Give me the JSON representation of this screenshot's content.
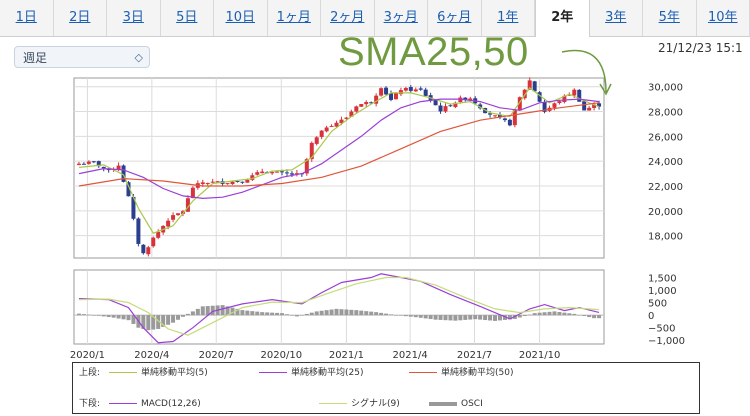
{
  "tabs": [
    "1日",
    "2日",
    "3日",
    "5日",
    "10日",
    "1ヶ月",
    "2ヶ月",
    "3ヶ月",
    "6ヶ月",
    "1年",
    "2年",
    "3年",
    "5年",
    "10年"
  ],
  "active_tab": "2年",
  "period_select": "週足",
  "timestamp": "21/12/23 15:1",
  "annotation": "SMA25,50",
  "legend": {
    "upper_label": "上段:",
    "lower_label": "下段:",
    "upper_items": [
      {
        "label": "単純移動平均(5)",
        "color": "#a9c94b"
      },
      {
        "label": "単純移動平均(25)",
        "color": "#9b3fd6"
      },
      {
        "label": "単純移動平均(50)",
        "color": "#e0563b"
      }
    ],
    "lower_items": [
      {
        "label": "MACD(12,26)",
        "color": "#9b3fd6"
      },
      {
        "label": "シグナル(9)",
        "color": "#c4dc7a"
      },
      {
        "label": "OSCI",
        "color": "#999999"
      }
    ]
  },
  "colors": {
    "up": "#d8333a",
    "down": "#2b3f8f",
    "annotation": "#6f9a3f"
  },
  "chart_data": [
    {
      "type": "candlestick",
      "x_tick_labels": [
        "2020/1",
        "2020/4",
        "2020/7",
        "2020/10",
        "2021/1",
        "2021/4",
        "2021/7",
        "2021/10"
      ],
      "y_tick_labels": [
        "30,000",
        "28,000",
        "26,000",
        "24,000",
        "22,000",
        "20,000",
        "18,000"
      ],
      "ylim": [
        16200,
        30700
      ],
      "close_points": [
        [
          "2019/12/20",
          23800
        ],
        [
          "2020/1/10",
          23900
        ],
        [
          "2020/1/31",
          23200
        ],
        [
          "2020/2/14",
          23700
        ],
        [
          "2020/2/28",
          21100
        ],
        [
          "2020/3/13",
          17400
        ],
        [
          "2020/3/20",
          16550
        ],
        [
          "2020/4/3",
          17800
        ],
        [
          "2020/4/24",
          19300
        ],
        [
          "2020/5/15",
          20000
        ],
        [
          "2020/5/29",
          21900
        ],
        [
          "2020/6/12",
          22300
        ],
        [
          "2020/7/10",
          22300
        ],
        [
          "2020/8/7",
          22400
        ],
        [
          "2020/9/4",
          23200
        ],
        [
          "2020/10/2",
          23000
        ],
        [
          "2020/10/30",
          22900
        ],
        [
          "2020/11/13",
          25400
        ],
        [
          "2020/12/4",
          26800
        ],
        [
          "2020/12/30",
          27400
        ],
        [
          "2021/1/15",
          28500
        ],
        [
          "2021/2/5",
          28800
        ],
        [
          "2021/2/19",
          30000
        ],
        [
          "2021/3/5",
          28900
        ],
        [
          "2021/3/19",
          29800
        ],
        [
          "2021/4/16",
          29700
        ],
        [
          "2021/5/14",
          28100
        ],
        [
          "2021/6/11",
          29000
        ],
        [
          "2021/6/25",
          29100
        ],
        [
          "2021/7/16",
          28000
        ],
        [
          "2021/8/20",
          27000
        ],
        [
          "2021/9/3",
          29100
        ],
        [
          "2021/9/17",
          30500
        ],
        [
          "2021/10/8",
          28000
        ],
        [
          "2021/10/29",
          28900
        ],
        [
          "2021/11/19",
          29700
        ],
        [
          "2021/12/3",
          28100
        ],
        [
          "2021/12/17",
          28500
        ]
      ],
      "series": [
        {
          "name": "単純移動平均(5)",
          "points": [
            [
              "2019/12/20",
              23500
            ],
            [
              "2020/1/24",
              23700
            ],
            [
              "2020/2/21",
              22900
            ],
            [
              "2020/3/13",
              20200
            ],
            [
              "2020/4/3",
              18200
            ],
            [
              "2020/5/1",
              18800
            ],
            [
              "2020/5/29",
              20800
            ],
            [
              "2020/6/26",
              22200
            ],
            [
              "2020/7/24",
              22400
            ],
            [
              "2020/8/21",
              22600
            ],
            [
              "2020/9/18",
              23200
            ],
            [
              "2020/10/16",
              23300
            ],
            [
              "2020/11/13",
              24300
            ],
            [
              "2020/12/11",
              26400
            ],
            [
              "2021/1/8",
              27600
            ],
            [
              "2021/2/5",
              28600
            ],
            [
              "2021/3/5",
              29500
            ],
            [
              "2021/4/2",
              29500
            ],
            [
              "2021/4/30",
              29100
            ],
            [
              "2021/5/28",
              28600
            ],
            [
              "2021/6/25",
              28800
            ],
            [
              "2021/7/23",
              27900
            ],
            [
              "2021/8/20",
              27600
            ],
            [
              "2021/9/17",
              29900
            ],
            [
              "2021/10/15",
              28700
            ],
            [
              "2021/11/12",
              29400
            ],
            [
              "2021/12/10",
              28700
            ],
            [
              "2021/12/24",
              28400
            ]
          ]
        },
        {
          "name": "単純移動平均(25)",
          "points": [
            [
              "2019/12/20",
              23000
            ],
            [
              "2020/1/24",
              23400
            ],
            [
              "2020/2/21",
              23300
            ],
            [
              "2020/3/20",
              22700
            ],
            [
              "2020/4/17",
              21800
            ],
            [
              "2020/5/15",
              21200
            ],
            [
              "2020/6/12",
              21000
            ],
            [
              "2020/7/10",
              21100
            ],
            [
              "2020/8/7",
              21500
            ],
            [
              "2020/9/4",
              22100
            ],
            [
              "2020/10/2",
              22700
            ],
            [
              "2020/10/30",
              23000
            ],
            [
              "2020/11/27",
              23800
            ],
            [
              "2020/12/25",
              24900
            ],
            [
              "2021/1/22",
              26000
            ],
            [
              "2021/2/19",
              27300
            ],
            [
              "2021/3/19",
              28300
            ],
            [
              "2021/4/16",
              28800
            ],
            [
              "2021/5/14",
              29000
            ],
            [
              "2021/6/11",
              29000
            ],
            [
              "2021/7/9",
              28800
            ],
            [
              "2021/8/6",
              28300
            ],
            [
              "2021/9/3",
              28100
            ],
            [
              "2021/10/1",
              28700
            ],
            [
              "2021/10/29",
              28900
            ],
            [
              "2021/11/26",
              29000
            ],
            [
              "2021/12/24",
              28800
            ]
          ]
        },
        {
          "name": "単純移動平均(50)",
          "points": [
            [
              "2019/12/20",
              22000
            ],
            [
              "2020/2/21",
              22600
            ],
            [
              "2020/4/17",
              22400
            ],
            [
              "2020/6/12",
              22000
            ],
            [
              "2020/8/7",
              22000
            ],
            [
              "2020/10/2",
              22200
            ],
            [
              "2020/11/27",
              22700
            ],
            [
              "2021/1/22",
              23600
            ],
            [
              "2021/3/19",
              25000
            ],
            [
              "2021/5/14",
              26400
            ],
            [
              "2021/7/9",
              27300
            ],
            [
              "2021/9/3",
              27800
            ],
            [
              "2021/10/29",
              28300
            ],
            [
              "2021/12/24",
              28700
            ]
          ]
        }
      ]
    },
    {
      "type": "line+bar",
      "y_tick_labels": [
        "1,500",
        "1,000",
        "500",
        "0",
        "−500",
        "−1,000"
      ],
      "ylim": [
        -1150,
        1800
      ],
      "series": [
        {
          "name": "MACD(12,26)",
          "points": [
            [
              "2019/12/20",
              660
            ],
            [
              "2020/1/31",
              620
            ],
            [
              "2020/2/28",
              300
            ],
            [
              "2020/3/20",
              -500
            ],
            [
              "2020/4/10",
              -1100
            ],
            [
              "2020/5/1",
              -1050
            ],
            [
              "2020/5/29",
              -500
            ],
            [
              "2020/6/26",
              150
            ],
            [
              "2020/8/7",
              450
            ],
            [
              "2020/9/18",
              620
            ],
            [
              "2020/10/30",
              450
            ],
            [
              "2020/11/27",
              900
            ],
            [
              "2020/12/25",
              1300
            ],
            [
              "2021/2/5",
              1500
            ],
            [
              "2021/2/19",
              1650
            ],
            [
              "2021/3/19",
              1500
            ],
            [
              "2021/4/16",
              1350
            ],
            [
              "2021/5/28",
              820
            ],
            [
              "2021/7/9",
              350
            ],
            [
              "2021/8/20",
              -150
            ],
            [
              "2021/9/17",
              250
            ],
            [
              "2021/10/8",
              420
            ],
            [
              "2021/11/5",
              180
            ],
            [
              "2021/11/26",
              300
            ],
            [
              "2021/12/24",
              110
            ]
          ]
        },
        {
          "name": "シグナル(9)",
          "points": [
            [
              "2019/12/20",
              620
            ],
            [
              "2020/1/31",
              640
            ],
            [
              "2020/2/28",
              500
            ],
            [
              "2020/3/27",
              100
            ],
            [
              "2020/4/24",
              -550
            ],
            [
              "2020/5/22",
              -800
            ],
            [
              "2020/6/26",
              -300
            ],
            [
              "2020/8/7",
              300
            ],
            [
              "2020/9/18",
              520
            ],
            [
              "2020/10/30",
              500
            ],
            [
              "2020/12/4",
              850
            ],
            [
              "2021/1/15",
              1250
            ],
            [
              "2021/2/26",
              1500
            ],
            [
              "2021/3/26",
              1500
            ],
            [
              "2021/5/7",
              1200
            ],
            [
              "2021/6/18",
              700
            ],
            [
              "2021/7/30",
              250
            ],
            [
              "2021/9/3",
              100
            ],
            [
              "2021/10/8",
              250
            ],
            [
              "2021/11/12",
              300
            ],
            [
              "2021/12/24",
              220
            ]
          ]
        },
        {
          "name": "OSCI",
          "points": [
            [
              "2019/12/20",
              60
            ],
            [
              "2020/1/10",
              0
            ],
            [
              "2020/2/7",
              -100
            ],
            [
              "2020/2/28",
              -200
            ],
            [
              "2020/3/13",
              -500
            ],
            [
              "2020/3/27",
              -600
            ],
            [
              "2020/4/10",
              -550
            ],
            [
              "2020/5/1",
              -300
            ],
            [
              "2020/5/22",
              50
            ],
            [
              "2020/6/12",
              350
            ],
            [
              "2020/7/10",
              400
            ],
            [
              "2020/8/7",
              200
            ],
            [
              "2020/9/4",
              120
            ],
            [
              "2020/10/2",
              80
            ],
            [
              "2020/10/23",
              -50
            ],
            [
              "2020/11/20",
              150
            ],
            [
              "2020/12/18",
              250
            ],
            [
              "2021/1/15",
              200
            ],
            [
              "2021/2/12",
              120
            ],
            [
              "2021/3/12",
              0
            ],
            [
              "2021/4/9",
              -80
            ],
            [
              "2021/5/7",
              -180
            ],
            [
              "2021/6/4",
              -220
            ],
            [
              "2021/7/2",
              -160
            ],
            [
              "2021/7/30",
              -230
            ],
            [
              "2021/8/27",
              -150
            ],
            [
              "2021/9/24",
              80
            ],
            [
              "2021/10/22",
              150
            ],
            [
              "2021/11/19",
              50
            ],
            [
              "2021/12/17",
              -120
            ]
          ]
        }
      ]
    }
  ]
}
